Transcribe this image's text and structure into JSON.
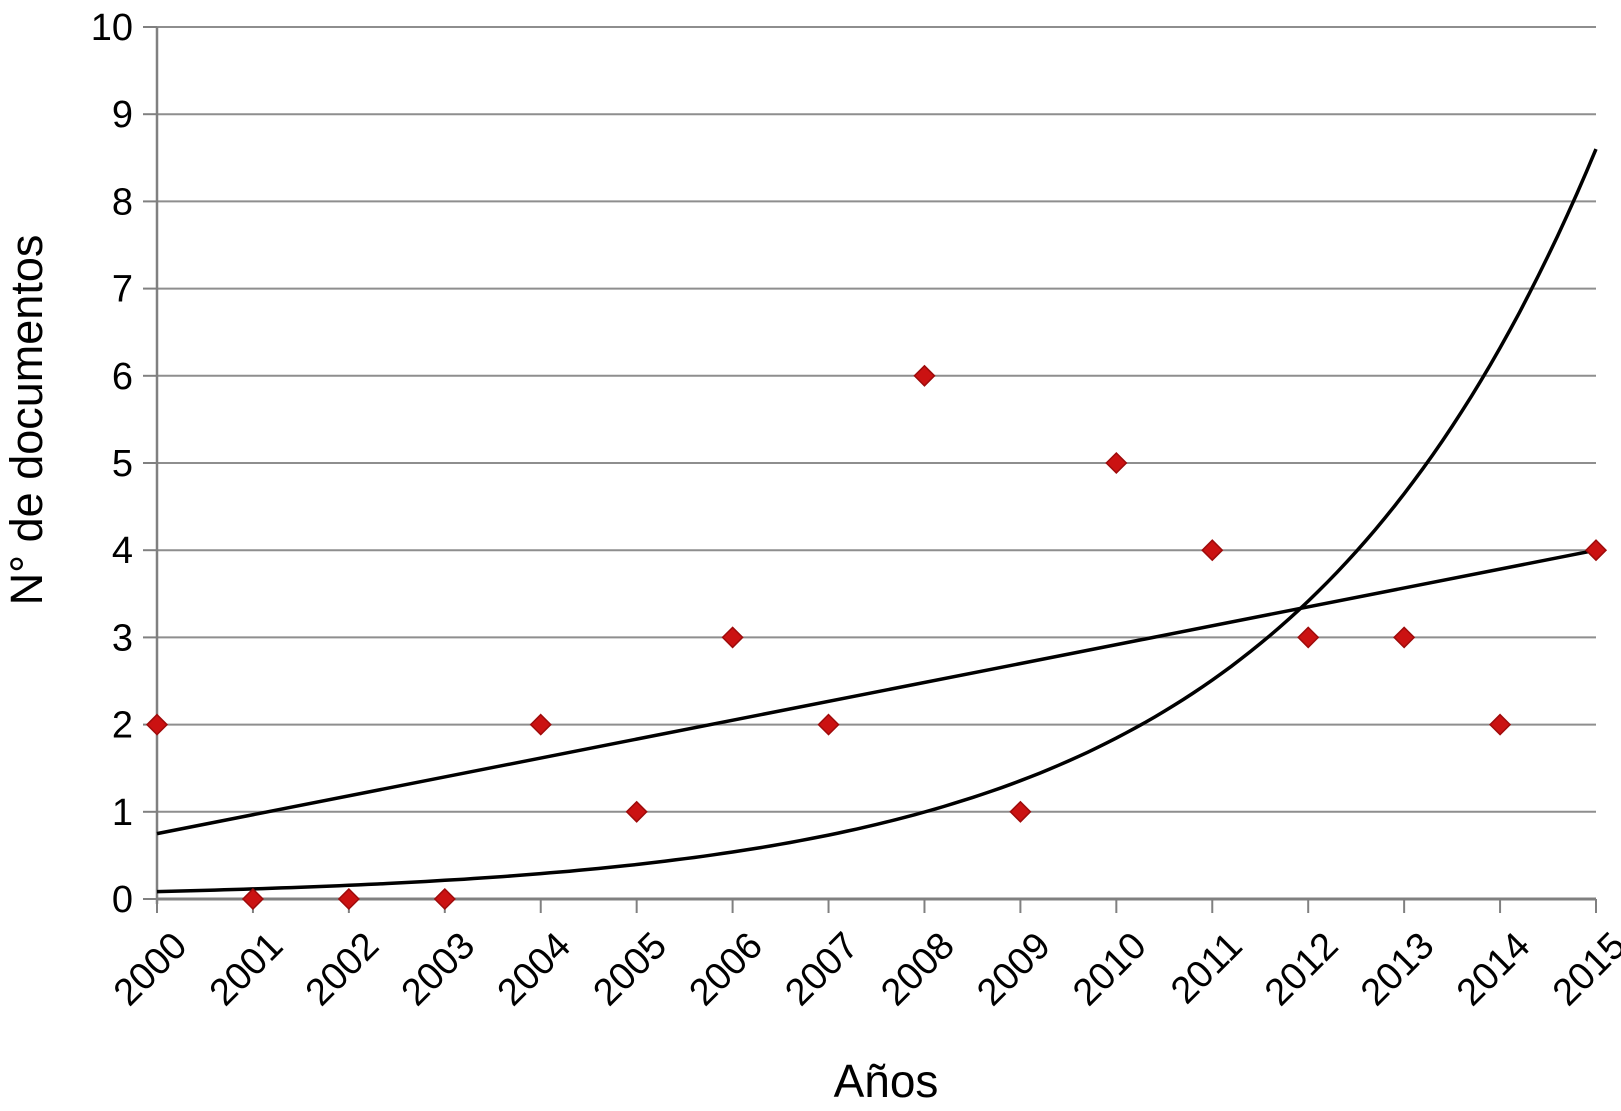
{
  "chart_data": {
    "type": "scatter",
    "title": "",
    "xlabel": "Años",
    "ylabel": "N° de documentos",
    "x_categories": [
      "2000",
      "2001",
      "2002",
      "2003",
      "2004",
      "2005",
      "2006",
      "2007",
      "2008",
      "2009",
      "2010",
      "2011",
      "2012",
      "2013",
      "2014",
      "2015"
    ],
    "series": [
      {
        "marker": "diamond",
        "color": "#cb1212",
        "values": [
          2,
          0,
          0,
          0,
          2,
          1,
          3,
          2,
          6,
          1,
          5,
          4,
          3,
          3,
          2,
          4
        ]
      }
    ],
    "trendlines": [
      {
        "shape": "linear",
        "start_value": 0.75,
        "end_value": 4.0,
        "color": "#000000"
      },
      {
        "shape": "exponential",
        "start_value": 0.085,
        "end_value": 8.6,
        "color": "#000000"
      }
    ],
    "ylim": [
      0,
      10
    ],
    "yticks": [
      0,
      1,
      2,
      3,
      4,
      5,
      6,
      7,
      8,
      9,
      10
    ],
    "grid": true,
    "legend": "none",
    "colors": {
      "background": "#ffffff",
      "gridline": "#8e8e8e",
      "axis": "#808080",
      "marker_fill": "#cb1212",
      "marker_border": "#9e0b0b",
      "trend_line": "#000000",
      "text": "#000000"
    }
  }
}
